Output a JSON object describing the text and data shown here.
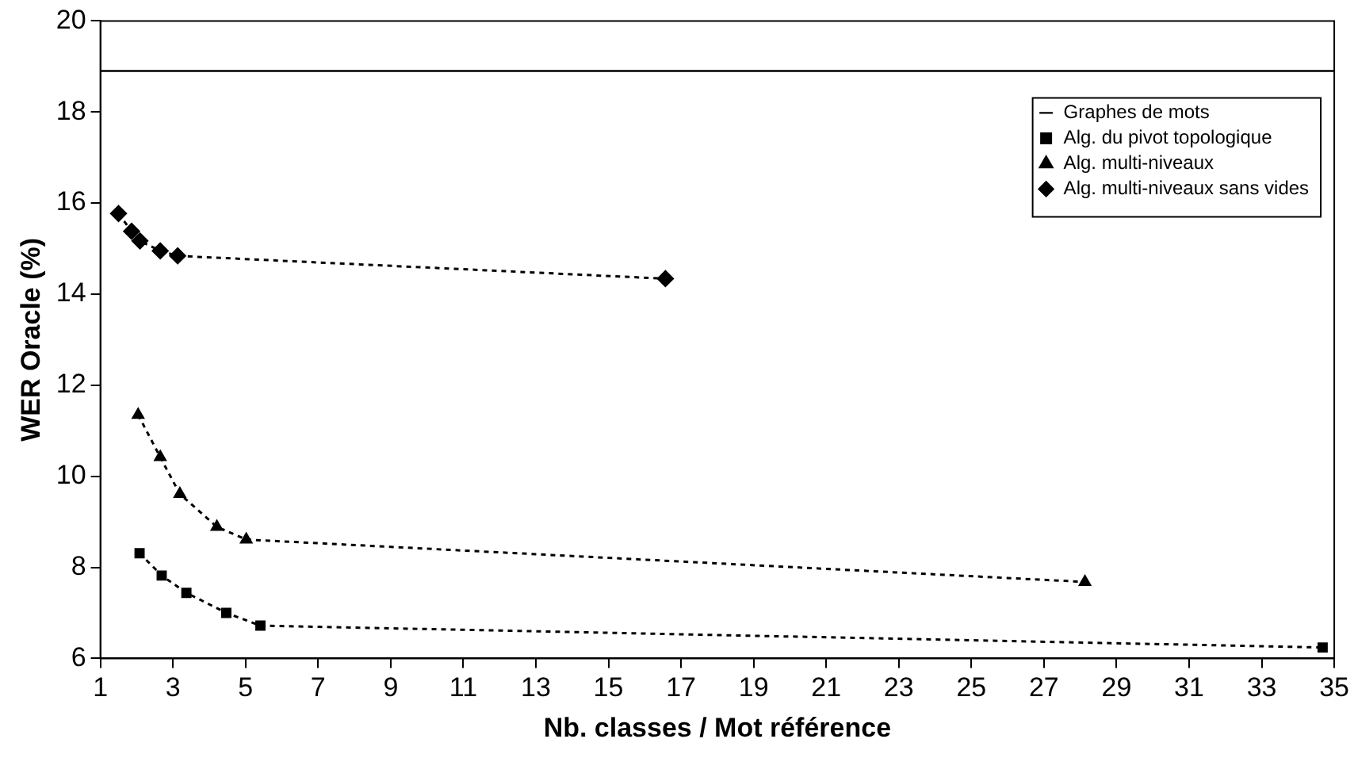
{
  "chart_data": {
    "type": "line",
    "xlabel": "Nb. classes / Mot référence",
    "ylabel": "WER Oracle (%)",
    "xlim": [
      1,
      35
    ],
    "xticks": [
      1,
      3,
      5,
      7,
      9,
      11,
      13,
      15,
      17,
      19,
      21,
      23,
      25,
      27,
      29,
      31,
      33,
      35
    ],
    "ylim": [
      6,
      20
    ],
    "yticks": [
      6,
      8,
      10,
      12,
      14,
      16,
      18,
      20
    ],
    "grid": false,
    "legend": "top right",
    "series": [
      {
        "name": "Graphes de mots",
        "color": "#000000",
        "marker": "none",
        "line_style": "solid",
        "x": [
          1,
          35
        ],
        "values": [
          18.9,
          18.9
        ]
      },
      {
        "name": "Alg. du pivot topologique",
        "color": "#000000",
        "marker": "square",
        "line_style": "dotted",
        "x": [
          2.08,
          2.69,
          3.37,
          4.47,
          5.41,
          34.68
        ],
        "values": [
          8.31,
          7.82,
          7.44,
          7.0,
          6.72,
          6.24
        ]
      },
      {
        "name": "Alg. multi-niveaux",
        "color": "#000000",
        "marker": "triangle",
        "line_style": "dotted",
        "x": [
          2.04,
          2.65,
          3.19,
          4.21,
          5.02,
          28.13
        ],
        "values": [
          11.35,
          10.42,
          9.61,
          8.89,
          8.61,
          7.68
        ]
      },
      {
        "name": "Alg. multi-niveaux sans vides",
        "color": "#000000",
        "marker": "diamond",
        "line_style": "dotted",
        "x": [
          1.5,
          1.86,
          2.09,
          2.65,
          3.13,
          16.57
        ],
        "values": [
          15.77,
          15.38,
          15.17,
          14.95,
          14.84,
          14.34
        ]
      }
    ]
  }
}
